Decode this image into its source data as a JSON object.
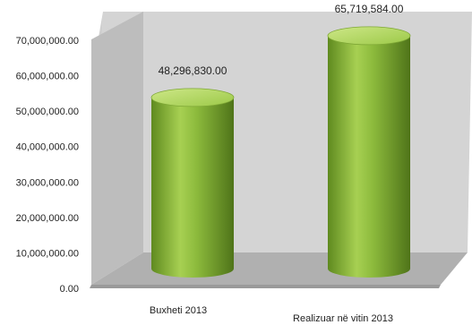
{
  "chart_data": {
    "type": "bar",
    "style": "3d-cylinder",
    "categories": [
      "Buxheti 2013",
      "Realizuar në vitin 2013"
    ],
    "series": [
      {
        "values": [
          48296830.0,
          65719584.0
        ],
        "labels": [
          "48,296,830.00",
          "65,719,584.00"
        ]
      }
    ],
    "ylim": [
      0,
      70000000
    ],
    "ticks": [
      "0.00",
      "10,000,000.00",
      "20,000,000.00",
      "30,000,000.00",
      "40,000,000.00",
      "50,000,000.00",
      "60,000,000.00",
      "70,000,000.00"
    ],
    "grid": false,
    "legend": "none",
    "colors": {
      "bar": "#8cba3c",
      "bar_dark": "#4f7419",
      "bar_light": "#c6e27a",
      "wall": "#c8c8c8",
      "floor": "#b3b3b3"
    }
  }
}
